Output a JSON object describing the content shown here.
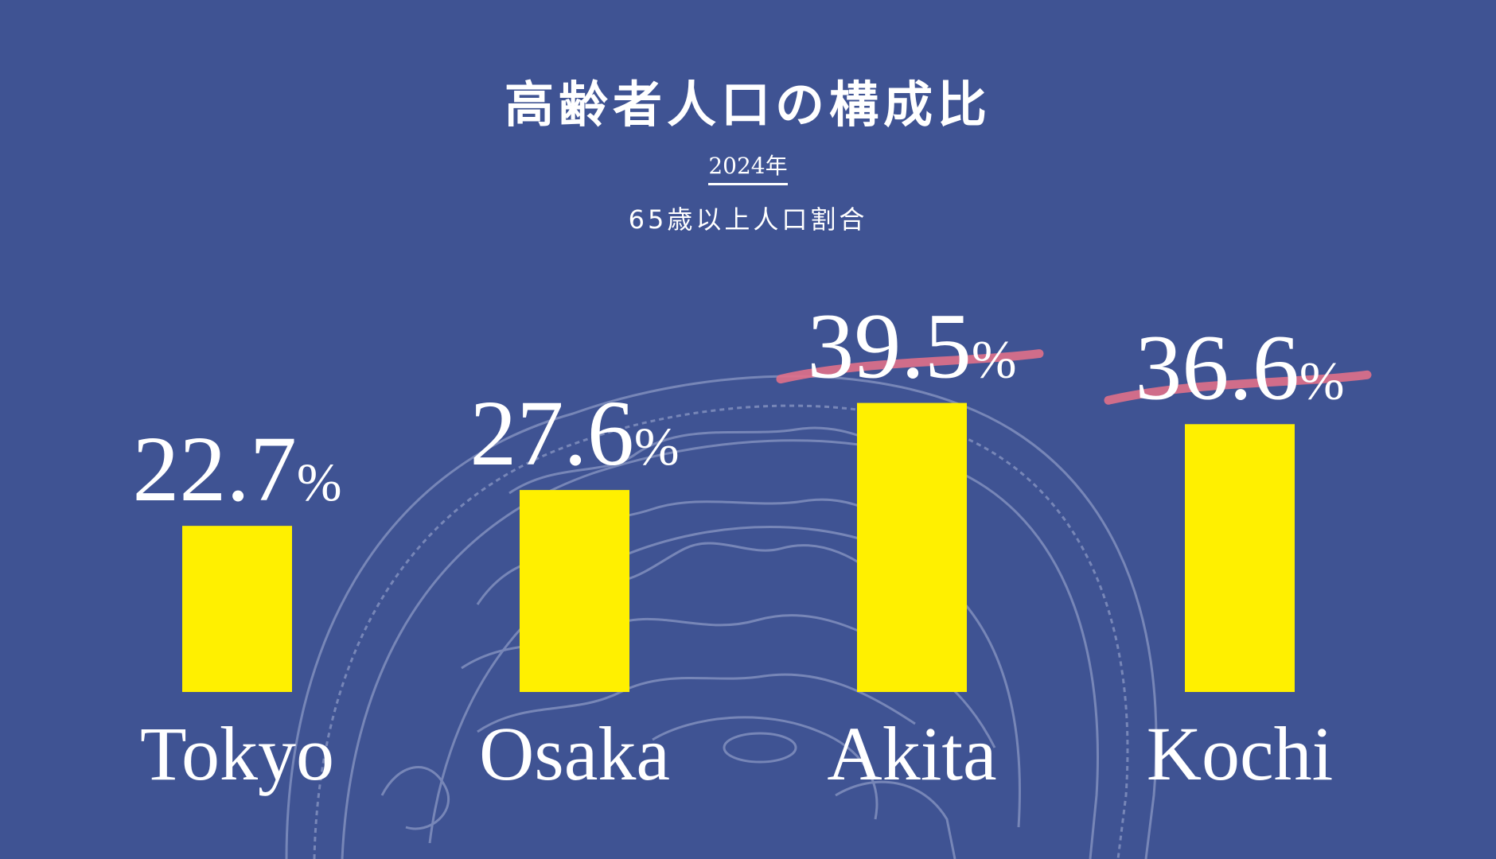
{
  "chart_data": {
    "type": "bar",
    "title": "高齢者人口の構成比",
    "year_label": "2024年",
    "subtitle": "65歳以上人口割合",
    "categories": [
      "Tokyo",
      "Osaka",
      "Akita",
      "Kochi"
    ],
    "values": [
      22.7,
      27.6,
      39.5,
      36.6
    ],
    "value_labels": [
      "22.7",
      "27.6",
      "39.5",
      "36.6"
    ],
    "unit": "%",
    "highlighted": [
      "Akita",
      "Kochi"
    ],
    "ylim": [
      0,
      40
    ],
    "grid": false
  },
  "colors": {
    "background": "#3f5393",
    "bar": "#fff000",
    "text": "#ffffff",
    "highlight_marker": "#e0708a",
    "illustration": "#8a97c4"
  },
  "decoration": {
    "background_illustration": "brain-cross-section-icon"
  }
}
